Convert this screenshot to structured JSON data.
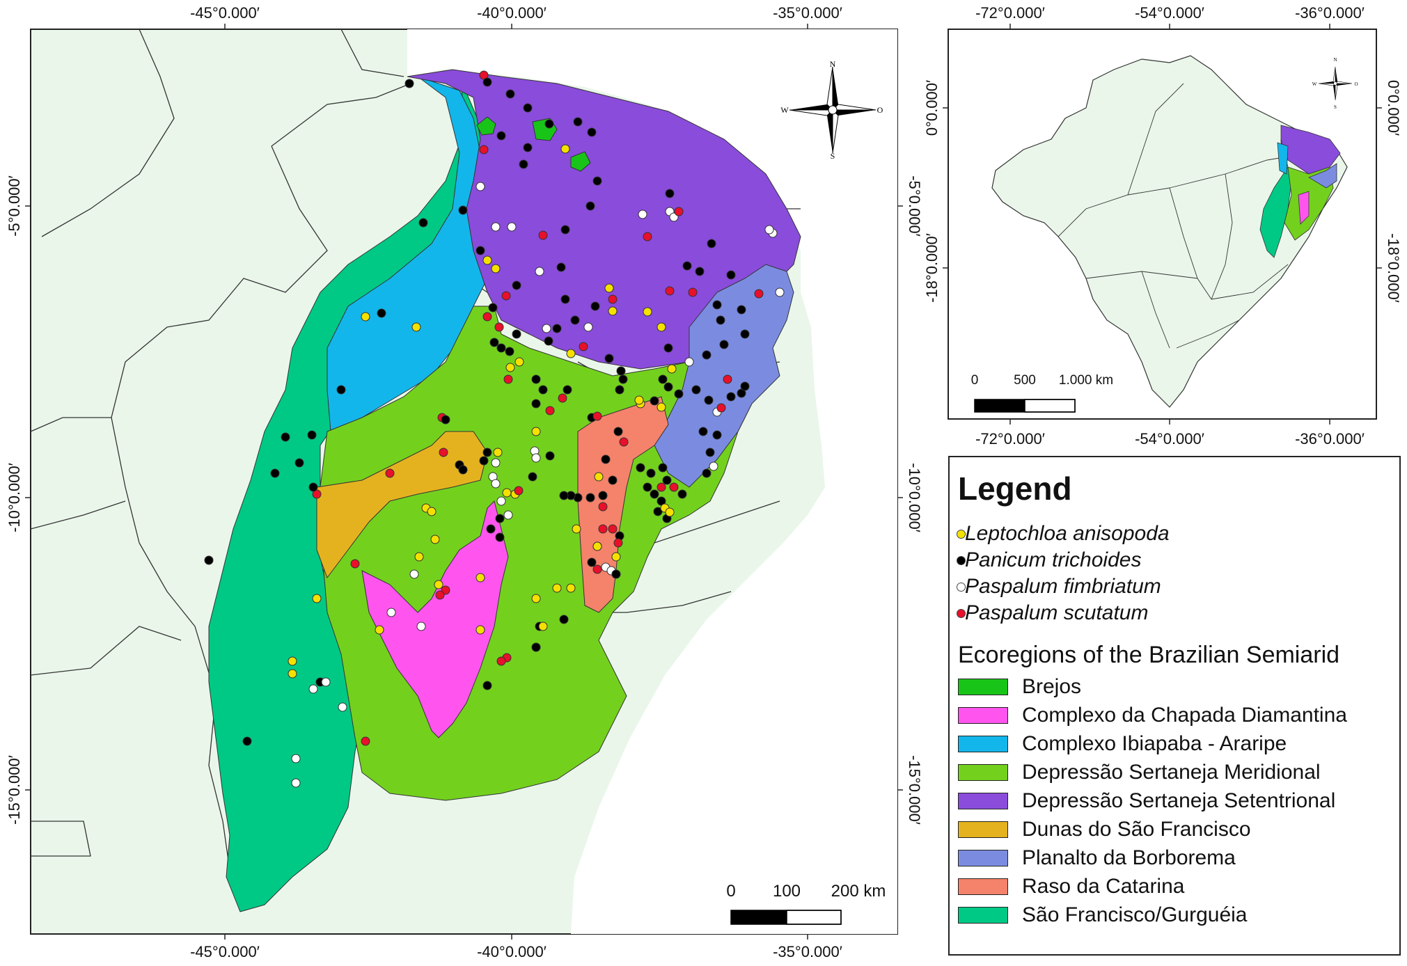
{
  "main_map": {
    "top_ticks": [
      "-45°0.000′",
      "-40°0.000′",
      "-35°0.000′"
    ],
    "bottom_ticks": [
      "-45°0.000′",
      "-40°0.000′",
      "-35°0.000′"
    ],
    "left_ticks": [
      "-5°0.000′",
      "-10°0.000′",
      "-15°0.000′"
    ],
    "right_ticks": [
      "-5°0.000′",
      "-10°0.000′",
      "-15°0.000′"
    ],
    "scale_labels": [
      "0",
      "100",
      "200 km"
    ],
    "compass_letters": [
      "N",
      "W",
      "O",
      "S"
    ]
  },
  "inset_map": {
    "top_ticks": [
      "-72°0.000′",
      "-54°0.000′",
      "-36°0.000′"
    ],
    "bottom_ticks": [
      "-72°0.000′",
      "-54°0.000′",
      "-36°0.000′"
    ],
    "left_ticks": [
      "0°0.000′",
      "-18°0.000′"
    ],
    "right_ticks": [
      "0°0.000′",
      "-18°0.000′"
    ],
    "scale_labels": [
      "0",
      "500",
      "1.000 km"
    ],
    "compass_letters": [
      "N",
      "W",
      "O",
      "S"
    ]
  },
  "legend": {
    "title": "Legend",
    "species": [
      {
        "name": "Leptochloa anisopoda",
        "color": "#f5e100"
      },
      {
        "name": "Panicum trichoides",
        "color": "#000000"
      },
      {
        "name": "Paspalum fimbriatum",
        "color": "#ffffff"
      },
      {
        "name": "Paspalum scutatum",
        "color": "#e8102a"
      }
    ],
    "ecoregions_title": "Ecoregions of the Brazilian Semiarid",
    "ecoregions": [
      {
        "name": "Brejos",
        "color": "#19c419"
      },
      {
        "name": "Complexo da Chapada Diamantina",
        "color": "#ff55ee"
      },
      {
        "name": "Complexo Ibiapaba - Araripe",
        "color": "#13b6ea"
      },
      {
        "name": "Depressão Sertaneja Meridional",
        "color": "#73d11e"
      },
      {
        "name": "Depressão Sertaneja Setentrional",
        "color": "#8a4cdb"
      },
      {
        "name": "Dunas do São Francisco",
        "color": "#e5b21f"
      },
      {
        "name": "Planalto da Borborema",
        "color": "#7b8ce0"
      },
      {
        "name": "Raso da Catarina",
        "color": "#f5826b"
      },
      {
        "name": "São Francisco/Gurguéia",
        "color": "#00c985"
      }
    ]
  },
  "colors": {
    "land": "#eaf6ea",
    "frame": "#222222"
  }
}
